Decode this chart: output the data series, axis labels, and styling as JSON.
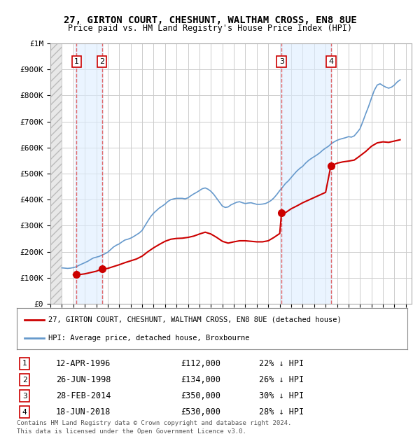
{
  "title1": "27, GIRTON COURT, CHESHUNT, WALTHAM CROSS, EN8 8UE",
  "title2": "Price paid vs. HM Land Registry's House Price Index (HPI)",
  "xlabel": "",
  "ylabel": "",
  "ylim": [
    0,
    1000000
  ],
  "yticks": [
    0,
    100000,
    200000,
    300000,
    400000,
    500000,
    600000,
    700000,
    800000,
    900000,
    1000000
  ],
  "ytick_labels": [
    "£0",
    "£100K",
    "£200K",
    "£300K",
    "£400K",
    "£500K",
    "£600K",
    "£700K",
    "£800K",
    "£900K",
    "£1M"
  ],
  "xlim_start": 1994.0,
  "xlim_end": 2025.5,
  "hatch_end": 1995.0,
  "transactions": [
    {
      "num": 1,
      "year": 1996.28,
      "price": 112000,
      "date": "12-APR-1996",
      "pct": "22%"
    },
    {
      "num": 2,
      "year": 1998.49,
      "price": 134000,
      "date": "26-JUN-1998",
      "pct": "26%"
    },
    {
      "num": 3,
      "year": 2014.16,
      "price": 350000,
      "date": "28-FEB-2014",
      "pct": "30%"
    },
    {
      "num": 4,
      "year": 2018.46,
      "price": 530000,
      "date": "18-JUN-2018",
      "pct": "28%"
    }
  ],
  "red_line_color": "#cc0000",
  "blue_line_color": "#6699cc",
  "marker_color": "#cc0000",
  "hatch_color": "#cccccc",
  "grid_color": "#cccccc",
  "vline_color": "#dd4444",
  "shade_color": "#ddeeff",
  "background_color": "#ffffff",
  "legend_label_red": "27, GIRTON COURT, CHESHUNT, WALTHAM CROSS, EN8 8UE (detached house)",
  "legend_label_blue": "HPI: Average price, detached house, Broxbourne",
  "footer1": "Contains HM Land Registry data © Crown copyright and database right 2024.",
  "footer2": "This data is licensed under the Open Government Licence v3.0.",
  "hpi_data": {
    "years": [
      1995.0,
      1995.25,
      1995.5,
      1995.75,
      1996.0,
      1996.25,
      1996.5,
      1996.75,
      1997.0,
      1997.25,
      1997.5,
      1997.75,
      1998.0,
      1998.25,
      1998.5,
      1998.75,
      1999.0,
      1999.25,
      1999.5,
      1999.75,
      2000.0,
      2000.25,
      2000.5,
      2000.75,
      2001.0,
      2001.25,
      2001.5,
      2001.75,
      2002.0,
      2002.25,
      2002.5,
      2002.75,
      2003.0,
      2003.25,
      2003.5,
      2003.75,
      2004.0,
      2004.25,
      2004.5,
      2004.75,
      2005.0,
      2005.25,
      2005.5,
      2005.75,
      2006.0,
      2006.25,
      2006.5,
      2006.75,
      2007.0,
      2007.25,
      2007.5,
      2007.75,
      2008.0,
      2008.25,
      2008.5,
      2008.75,
      2009.0,
      2009.25,
      2009.5,
      2009.75,
      2010.0,
      2010.25,
      2010.5,
      2010.75,
      2011.0,
      2011.25,
      2011.5,
      2011.75,
      2012.0,
      2012.25,
      2012.5,
      2012.75,
      2013.0,
      2013.25,
      2013.5,
      2013.75,
      2014.0,
      2014.25,
      2014.5,
      2014.75,
      2015.0,
      2015.25,
      2015.5,
      2015.75,
      2016.0,
      2016.25,
      2016.5,
      2016.75,
      2017.0,
      2017.25,
      2017.5,
      2017.75,
      2018.0,
      2018.25,
      2018.5,
      2018.75,
      2019.0,
      2019.25,
      2019.5,
      2019.75,
      2020.0,
      2020.25,
      2020.5,
      2020.75,
      2021.0,
      2021.25,
      2021.5,
      2021.75,
      2022.0,
      2022.25,
      2022.5,
      2022.75,
      2023.0,
      2023.25,
      2023.5,
      2023.75,
      2024.0,
      2024.25,
      2024.5
    ],
    "values": [
      138000,
      137000,
      136000,
      137000,
      139000,
      142000,
      148000,
      153000,
      158000,
      163000,
      170000,
      176000,
      179000,
      182000,
      187000,
      192000,
      198000,
      208000,
      218000,
      225000,
      230000,
      238000,
      245000,
      248000,
      252000,
      258000,
      265000,
      272000,
      282000,
      300000,
      318000,
      335000,
      348000,
      358000,
      368000,
      375000,
      383000,
      393000,
      400000,
      403000,
      405000,
      405000,
      405000,
      403000,
      407000,
      415000,
      422000,
      428000,
      435000,
      442000,
      445000,
      440000,
      432000,
      420000,
      405000,
      390000,
      375000,
      370000,
      372000,
      380000,
      385000,
      390000,
      392000,
      388000,
      385000,
      387000,
      388000,
      385000,
      382000,
      382000,
      383000,
      385000,
      390000,
      397000,
      407000,
      420000,
      435000,
      448000,
      462000,
      472000,
      485000,
      498000,
      510000,
      520000,
      528000,
      540000,
      550000,
      558000,
      565000,
      572000,
      580000,
      590000,
      598000,
      605000,
      615000,
      622000,
      628000,
      632000,
      635000,
      638000,
      642000,
      640000,
      645000,
      658000,
      672000,
      700000,
      730000,
      758000,
      790000,
      820000,
      840000,
      845000,
      838000,
      832000,
      828000,
      832000,
      840000,
      852000,
      860000
    ]
  },
  "red_line_data": {
    "years": [
      1996.0,
      1996.28,
      1996.5,
      1997.0,
      1997.5,
      1998.0,
      1998.49,
      1998.75,
      1999.0,
      1999.5,
      2000.0,
      2000.5,
      2001.0,
      2001.5,
      2002.0,
      2002.5,
      2003.0,
      2003.5,
      2004.0,
      2004.5,
      2005.0,
      2005.5,
      2006.0,
      2006.5,
      2007.0,
      2007.5,
      2008.0,
      2008.5,
      2009.0,
      2009.5,
      2010.0,
      2010.5,
      2011.0,
      2011.5,
      2012.0,
      2012.5,
      2013.0,
      2013.5,
      2014.0,
      2014.16,
      2014.5,
      2015.0,
      2015.5,
      2016.0,
      2016.5,
      2017.0,
      2017.5,
      2018.0,
      2018.46,
      2018.75,
      2019.0,
      2019.5,
      2020.0,
      2020.5,
      2021.0,
      2021.5,
      2022.0,
      2022.5,
      2023.0,
      2023.5,
      2024.0,
      2024.5
    ],
    "values": [
      112000,
      112000,
      112000,
      115000,
      120000,
      125000,
      134000,
      134000,
      136000,
      143000,
      150000,
      158000,
      165000,
      172000,
      183000,
      200000,
      215000,
      228000,
      240000,
      248000,
      251000,
      252000,
      255000,
      260000,
      268000,
      275000,
      268000,
      255000,
      240000,
      233000,
      238000,
      242000,
      242000,
      240000,
      238000,
      238000,
      242000,
      255000,
      270000,
      350000,
      350000,
      365000,
      376000,
      388000,
      398000,
      408000,
      418000,
      428000,
      530000,
      535000,
      540000,
      545000,
      548000,
      552000,
      568000,
      585000,
      605000,
      618000,
      622000,
      620000,
      625000,
      630000
    ]
  }
}
